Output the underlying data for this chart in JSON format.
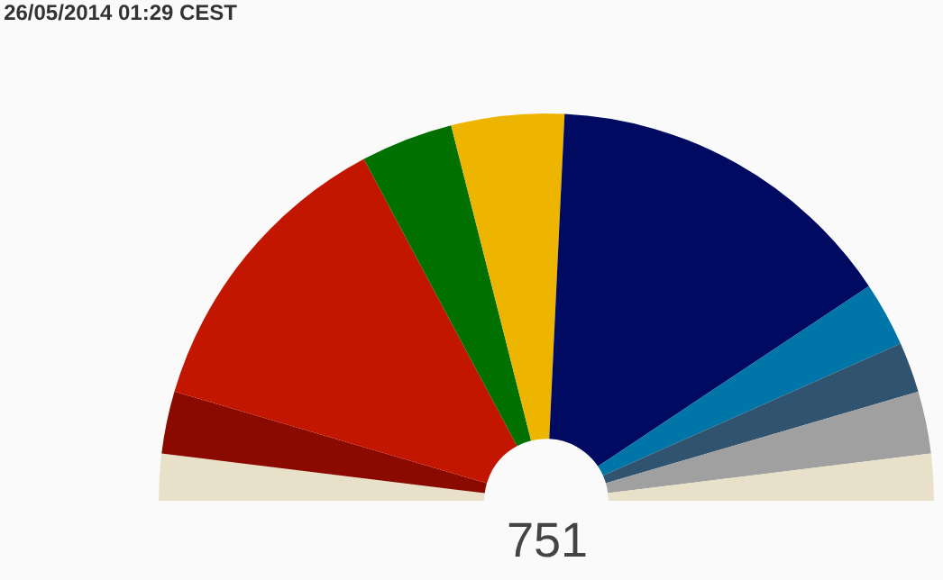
{
  "chart_data": {
    "type": "pie",
    "title": "26/05/2014 01:29 CEST",
    "categories": [
      null,
      null,
      null,
      null,
      null,
      null,
      null,
      null,
      null,
      null
    ],
    "values": [
      3.9,
      5.2,
      25.3,
      7.7,
      9.4,
      29.8,
      5.4,
      4.2,
      5.2,
      3.9
    ],
    "colors": [
      "#e8e0c8",
      "#8b0a00",
      "#c31600",
      "#007000",
      "#edb500",
      "#000a60",
      "#0076a8",
      "#305470",
      "#a0a0a0",
      "#e8e0c8"
    ],
    "annotations": [
      "751"
    ],
    "legend": false
  }
}
